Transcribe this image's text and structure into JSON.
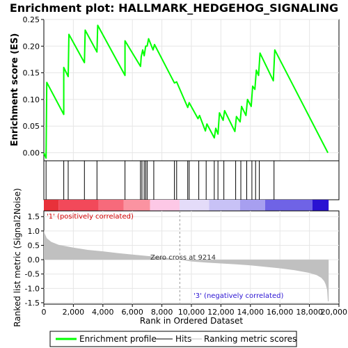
{
  "chart_data": {
    "type": "line",
    "title": "Enrichment plot: HALLMARK_HEDGEHOG_SIGNALING",
    "es_panel": {
      "ylabel": "Enrichment score (ES)",
      "ylim": [
        -0.015,
        0.25
      ],
      "yticks": [
        0.0,
        0.05,
        0.1,
        0.15,
        0.2,
        0.25
      ],
      "ytick_labels": [
        "0.00",
        "0.05",
        "0.10",
        "0.15",
        "0.20",
        "0.25"
      ],
      "series_name": "Enrichment profile",
      "x": [
        0,
        150,
        200,
        1350,
        1350,
        1650,
        1700,
        2750,
        2800,
        3600,
        3650,
        5500,
        5500,
        6550,
        6600,
        6700,
        6800,
        6900,
        7000,
        7100,
        7400,
        7500,
        8850,
        9000,
        9750,
        9850,
        10450,
        10550,
        10950,
        11050,
        11550,
        11650,
        11800,
        11900,
        12150,
        12250,
        12950,
        13050,
        13300,
        13400,
        13700,
        13800,
        14050,
        14150,
        14300,
        14400,
        14550,
        14650,
        15550,
        15650,
        19250
      ],
      "y": [
        0.0,
        -0.01,
        0.132,
        0.072,
        0.16,
        0.143,
        0.222,
        0.169,
        0.23,
        0.189,
        0.239,
        0.145,
        0.21,
        0.162,
        0.18,
        0.193,
        0.182,
        0.2,
        0.2,
        0.214,
        0.193,
        0.203,
        0.131,
        0.133,
        0.085,
        0.094,
        0.064,
        0.07,
        0.041,
        0.054,
        0.028,
        0.046,
        0.035,
        0.075,
        0.061,
        0.079,
        0.04,
        0.068,
        0.058,
        0.087,
        0.07,
        0.1,
        0.087,
        0.125,
        0.119,
        0.155,
        0.145,
        0.187,
        0.135,
        0.193,
        0.0
      ]
    },
    "hits": [
      150,
      1350,
      1650,
      2750,
      3600,
      5500,
      6550,
      6650,
      6800,
      6900,
      7000,
      7450,
      8850,
      9000,
      9750,
      9850,
      10500,
      11000,
      11550,
      11800,
      12200,
      13000,
      13350,
      13750,
      14100,
      14350,
      14600,
      15600
    ],
    "color_bar_bands": [
      {
        "to": 1000,
        "color": "#e8313a"
      },
      {
        "to": 3700,
        "color": "#f2495a"
      },
      {
        "to": 5400,
        "color": "#f76a7b"
      },
      {
        "to": 7200,
        "color": "#fb93a1"
      },
      {
        "to": 9200,
        "color": "#fdc8e6"
      },
      {
        "to": 11200,
        "color": "#e4dcf9"
      },
      {
        "to": 13300,
        "color": "#c8c2f6"
      },
      {
        "to": 15000,
        "color": "#a79ff0"
      },
      {
        "to": 18200,
        "color": "#6f63e6"
      },
      {
        "to": 19300,
        "color": "#2a12d2"
      }
    ],
    "metric_panel": {
      "ylabel": "Ranked list metric (Signal2Noise)",
      "ylim": [
        -1.55,
        1.7
      ],
      "yticks": [
        -1.5,
        -1.0,
        -0.5,
        0.0,
        0.5,
        1.0,
        1.5
      ],
      "ytick_labels": [
        "-1.5",
        "-1.0",
        "-0.5",
        "0.0",
        "0.5",
        "1.0",
        "1.5"
      ],
      "series_name": "Ranking metric scores",
      "x": [
        0,
        50,
        200,
        500,
        1000,
        2000,
        3000,
        4000,
        5000,
        6000,
        7000,
        8000,
        9214,
        10000,
        11000,
        12000,
        13000,
        14000,
        15000,
        16000,
        17000,
        18000,
        18500,
        18800,
        19000,
        19100,
        19200,
        19250,
        19300
      ],
      "y": [
        1.0,
        0.92,
        0.75,
        0.62,
        0.52,
        0.42,
        0.34,
        0.29,
        0.23,
        0.18,
        0.13,
        0.08,
        0.0,
        -0.06,
        -0.1,
        -0.13,
        -0.16,
        -0.2,
        -0.25,
        -0.3,
        -0.37,
        -0.46,
        -0.54,
        -0.63,
        -0.75,
        -0.86,
        -1.05,
        -1.45,
        -1.45
      ]
    },
    "zero_cross_x": 9214,
    "zero_cross_label": "Zero cross at 9214",
    "pos_label": "'1' (positively correlated)",
    "neg_label": "'3' (negatively correlated)",
    "xlabel": "Rank in Ordered Dataset",
    "xlim": [
      0,
      20000
    ],
    "xticks": [
      0,
      2000,
      4000,
      6000,
      8000,
      10000,
      12000,
      14000,
      16000,
      18000,
      20000
    ],
    "xtick_labels": [
      "0",
      "2,000",
      "4,000",
      "6,000",
      "8,000",
      "10,000",
      "12,000",
      "14,000",
      "16,000",
      "18,000",
      "20,000"
    ],
    "legend": {
      "placement": "bottom",
      "entries": [
        {
          "label": "Enrichment profile",
          "color": "#00ff00"
        },
        {
          "label": "Hits",
          "color": "#000000"
        },
        {
          "label": "Ranking metric scores",
          "color": "#c0c0c0"
        }
      ]
    },
    "colors": {
      "es_line": "#00ff00",
      "metric_fill": "#c0c0c0",
      "pos_label": "#d40000",
      "neg_label": "#2a12d2",
      "grid": "#e6e6e6"
    }
  }
}
